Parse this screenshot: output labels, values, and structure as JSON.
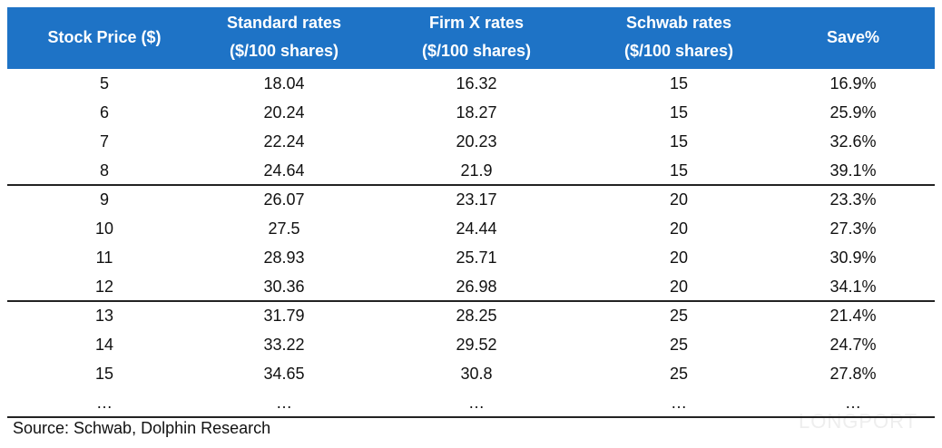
{
  "table": {
    "header": [
      [
        "Stock Price ($)"
      ],
      [
        "Standard rates",
        "($/100 shares)"
      ],
      [
        "Firm X rates",
        "($/100 shares)"
      ],
      [
        "Schwab rates",
        "($/100 shares)"
      ],
      [
        "Save%"
      ]
    ],
    "rows": [
      [
        "5",
        "18.04",
        "16.32",
        "15",
        "16.9%"
      ],
      [
        "6",
        "20.24",
        "18.27",
        "15",
        "25.9%"
      ],
      [
        "7",
        "22.24",
        "20.23",
        "15",
        "32.6%"
      ],
      [
        "8",
        "24.64",
        "21.9",
        "15",
        "39.1%"
      ],
      [
        "9",
        "26.07",
        "23.17",
        "20",
        "23.3%"
      ],
      [
        "10",
        "27.5",
        "24.44",
        "20",
        "27.3%"
      ],
      [
        "11",
        "28.93",
        "25.71",
        "20",
        "30.9%"
      ],
      [
        "12",
        "30.36",
        "26.98",
        "20",
        "34.1%"
      ],
      [
        "13",
        "31.79",
        "28.25",
        "25",
        "21.4%"
      ],
      [
        "14",
        "33.22",
        "29.52",
        "25",
        "24.7%"
      ],
      [
        "15",
        "34.65",
        "30.8",
        "25",
        "27.8%"
      ],
      [
        "…",
        "…",
        "…",
        "…",
        "…"
      ]
    ]
  },
  "source": "Source: Schwab, Dolphin Research",
  "watermark": "LONGPORT"
}
